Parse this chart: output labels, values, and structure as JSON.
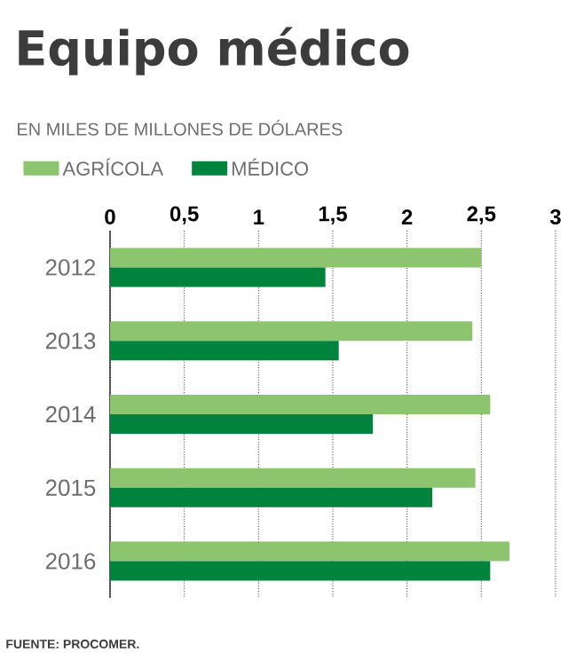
{
  "chart_data": {
    "type": "bar",
    "orientation": "horizontal",
    "title": "Equipo médico",
    "subtitle": "EN MILES DE MILLONES DE DÓLARES",
    "categories": [
      "2012",
      "2013",
      "2014",
      "2015",
      "2016"
    ],
    "series": [
      {
        "name": "AGRÍCOLA",
        "color": "#8dc46e",
        "values": [
          2.5,
          2.44,
          2.56,
          2.46,
          2.69
        ]
      },
      {
        "name": "MÉDICO",
        "color": "#00843d",
        "values": [
          1.45,
          1.54,
          1.77,
          2.17,
          2.56
        ]
      }
    ],
    "xlim": [
      0,
      3
    ],
    "xticks": [
      0,
      {
        "value": 0.5,
        "label": "0,5"
      },
      1,
      {
        "value": 1.5,
        "label": "1,5"
      },
      2,
      {
        "value": 2.5,
        "label": "2,5"
      },
      3
    ],
    "grid": "x",
    "legend": "top left",
    "annotations": [
      "FUENTE: PROCOMER."
    ]
  }
}
